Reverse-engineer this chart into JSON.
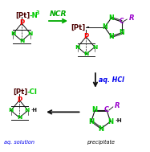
{
  "bg_color": "#ffffff",
  "fig_width": 1.87,
  "fig_height": 1.89,
  "dpi": 100,
  "colors": {
    "Pt_bracket": "#4a0000",
    "N_green": "#00cc00",
    "P_red": "#ff0000",
    "C_purple": "#9900cc",
    "R_purple": "#9900cc",
    "arrow_green": "#00aa00",
    "arrow_black": "#111111",
    "aq_HCl_blue": "#0000ee",
    "aq_solution_blue": "#0000ee",
    "bond_black": "#111111"
  },
  "ncr_label": "NCR",
  "aq_HCl_label": "aq. HCl",
  "aq_solution_label": "aq. solution",
  "precipitate_label": "precipitate"
}
